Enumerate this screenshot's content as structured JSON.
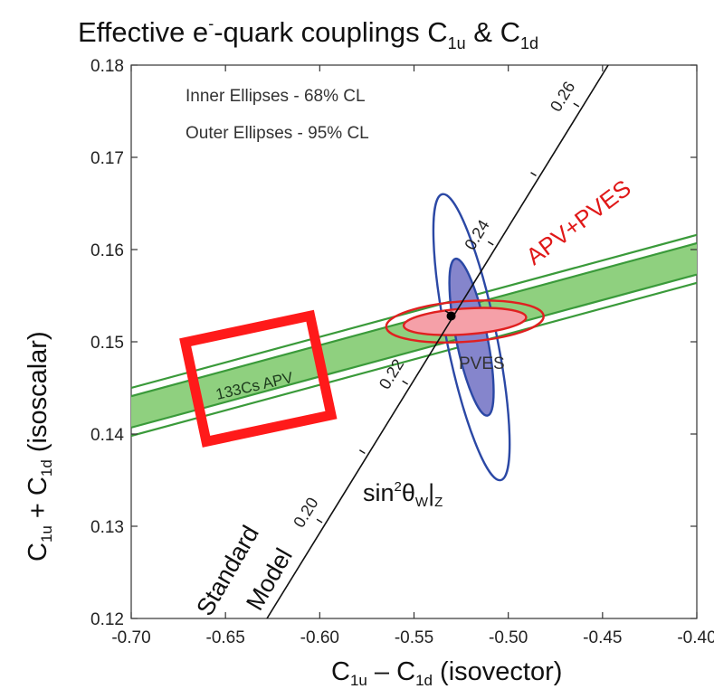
{
  "chart_data": {
    "type": "scatter",
    "title": {
      "prefix": "Effective e",
      "superscript": "-",
      "middle": "-quark couplings C",
      "sub1": "1u",
      "amp": " & C",
      "sub2": "1d"
    },
    "xlabel": {
      "c1": "C",
      "sub1": "1u",
      "minus": " – C",
      "sub2": "1d",
      "rest": " (isovector)"
    },
    "ylabel": {
      "c1": "C",
      "sub1": "1u",
      "plus": " + C",
      "sub2": "1d",
      "rest": " (isoscalar)"
    },
    "xlim": [
      -0.7,
      -0.4
    ],
    "ylim": [
      0.12,
      0.18
    ],
    "x_ticks": [
      -0.7,
      -0.65,
      -0.6,
      -0.55,
      -0.5,
      -0.45,
      -0.4
    ],
    "x_tick_labels": [
      "-0.70",
      "-0.65",
      "-0.60",
      "-0.55",
      "-0.50",
      "-0.45",
      "-0.40"
    ],
    "y_ticks": [
      0.12,
      0.13,
      0.14,
      0.15,
      0.16,
      0.17,
      0.18
    ],
    "y_tick_labels": [
      "0.12",
      "0.13",
      "0.14",
      "0.15",
      "0.16",
      "0.17",
      "0.18"
    ],
    "notes": [
      "Inner Ellipses - 68% CL",
      "Outer Ellipses - 95% CL"
    ],
    "apv_band": {
      "label": "133Cs APV",
      "slope": 0.0553,
      "center_at_x_min": 0.1424,
      "half_width_68": 0.0017,
      "half_width_95": 0.0026,
      "fill_color": "#8fd07f",
      "line_color": "#3a9a3a"
    },
    "pves_ellipse": {
      "label": "PVES",
      "center": [
        -0.5195,
        0.1505
      ],
      "inner_extreme_points": [
        [
          -0.528,
          0.159
        ],
        [
          -0.511,
          0.142
        ]
      ],
      "inner_width_x": 0.0165,
      "outer_extreme_points": [
        [
          -0.535,
          0.166
        ],
        [
          -0.504,
          0.135
        ]
      ],
      "outer_width_x": 0.0265,
      "fill_color": "#8585cc",
      "line_color": "#2b48a5"
    },
    "combined_ellipse": {
      "label": "APV+PVES",
      "center": [
        -0.523,
        0.1522
      ],
      "inner_semi_axes": [
        0.0105,
        0.0014
      ],
      "outer_semi_axes": [
        0.0135,
        0.0022
      ],
      "tilt_deg": 4,
      "fill_color": "#f5a0a8",
      "line_color": "#e02020"
    },
    "standard_model": {
      "label_line1": "Standard",
      "label_line2": "Model",
      "point": [
        -0.5303,
        0.1528
      ],
      "line_from": [
        -0.628,
        0.12
      ],
      "line_to": [
        -0.447,
        0.18
      ],
      "ticks": [
        {
          "x": -0.5987,
          "y": 0.1304,
          "label": "0.20",
          "labeled": true
        },
        {
          "x": -0.576,
          "y": 0.1379,
          "label": "",
          "labeled": false
        },
        {
          "x": -0.5533,
          "y": 0.1454,
          "label": "0.22",
          "labeled": true
        },
        {
          "x": -0.5306,
          "y": 0.153,
          "label": "",
          "labeled": false
        },
        {
          "x": -0.5079,
          "y": 0.1605,
          "label": "0.24",
          "labeled": true
        },
        {
          "x": -0.4852,
          "y": 0.168,
          "label": "",
          "labeled": false
        },
        {
          "x": -0.4625,
          "y": 0.1755,
          "label": "0.26",
          "labeled": true
        }
      ],
      "mixing_label": "sin²θW|Z",
      "point_color": "#000000"
    },
    "apv_box": {
      "x_range": [
        -0.6665,
        -0.5988
      ],
      "y_range": [
        0.1405,
        0.1515
      ],
      "color": "#ff1a1a"
    },
    "grid": false
  },
  "labels": {
    "mixing": {
      "sin": "sin",
      "sq": "2",
      "theta": "θ",
      "w": "W",
      "bar": "|",
      "z": "Z"
    }
  }
}
